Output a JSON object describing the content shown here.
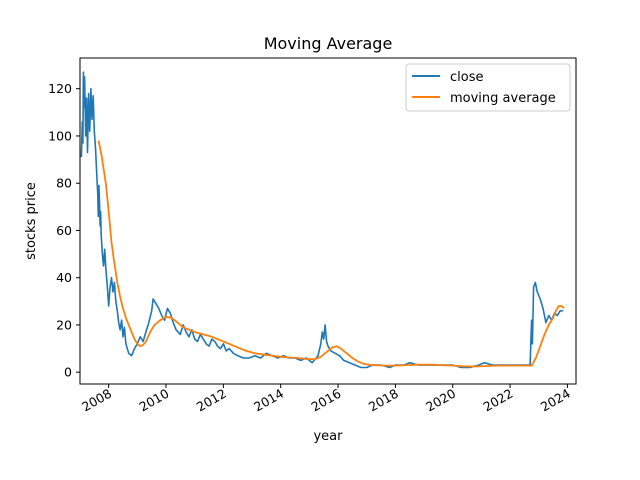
{
  "chart_data": {
    "type": "line",
    "title": "Moving Average",
    "xlabel": "year",
    "ylabel": "stocks price",
    "xlim": [
      2007.0,
      2024.3
    ],
    "ylim": [
      -5,
      133
    ],
    "x_ticks": [
      2008,
      2010,
      2012,
      2014,
      2016,
      2018,
      2020,
      2022,
      2024
    ],
    "x_tick_labels": [
      "2008",
      "2010",
      "2012",
      "2014",
      "2016",
      "2018",
      "2020",
      "2022",
      "2024"
    ],
    "y_ticks": [
      0,
      20,
      40,
      60,
      80,
      100,
      120
    ],
    "y_tick_labels": [
      "0",
      "20",
      "40",
      "60",
      "80",
      "100",
      "120"
    ],
    "grid": false,
    "legend_position": "top-right",
    "series": [
      {
        "name": "close",
        "color": "#1f77b4",
        "points": [
          [
            2007.05,
            91
          ],
          [
            2007.08,
            106
          ],
          [
            2007.1,
            97
          ],
          [
            2007.12,
            127
          ],
          [
            2007.14,
            112
          ],
          [
            2007.16,
            125
          ],
          [
            2007.2,
            100
          ],
          [
            2007.23,
            116
          ],
          [
            2007.26,
            93
          ],
          [
            2007.3,
            118
          ],
          [
            2007.34,
            102
          ],
          [
            2007.38,
            120
          ],
          [
            2007.42,
            107
          ],
          [
            2007.46,
            117
          ],
          [
            2007.5,
            102
          ],
          [
            2007.54,
            95
          ],
          [
            2007.58,
            85
          ],
          [
            2007.62,
            75
          ],
          [
            2007.64,
            66
          ],
          [
            2007.66,
            79
          ],
          [
            2007.68,
            72
          ],
          [
            2007.7,
            62
          ],
          [
            2007.72,
            68
          ],
          [
            2007.74,
            58
          ],
          [
            2007.78,
            50
          ],
          [
            2007.82,
            45
          ],
          [
            2007.86,
            52
          ],
          [
            2007.9,
            44
          ],
          [
            2007.95,
            37
          ],
          [
            2008.0,
            28
          ],
          [
            2008.05,
            36
          ],
          [
            2008.1,
            40
          ],
          [
            2008.15,
            34
          ],
          [
            2008.2,
            38
          ],
          [
            2008.25,
            30
          ],
          [
            2008.3,
            26
          ],
          [
            2008.35,
            21
          ],
          [
            2008.4,
            18
          ],
          [
            2008.45,
            22
          ],
          [
            2008.5,
            15
          ],
          [
            2008.55,
            19
          ],
          [
            2008.6,
            12
          ],
          [
            2008.7,
            8
          ],
          [
            2008.8,
            7
          ],
          [
            2008.9,
            10
          ],
          [
            2009.0,
            12
          ],
          [
            2009.1,
            15
          ],
          [
            2009.2,
            13
          ],
          [
            2009.3,
            17
          ],
          [
            2009.4,
            21
          ],
          [
            2009.5,
            26
          ],
          [
            2009.55,
            31
          ],
          [
            2009.65,
            29
          ],
          [
            2009.75,
            27
          ],
          [
            2009.85,
            24
          ],
          [
            2009.95,
            22
          ],
          [
            2010.05,
            27
          ],
          [
            2010.15,
            25
          ],
          [
            2010.25,
            21
          ],
          [
            2010.35,
            18
          ],
          [
            2010.5,
            16
          ],
          [
            2010.6,
            20
          ],
          [
            2010.7,
            17
          ],
          [
            2010.8,
            15
          ],
          [
            2010.9,
            18
          ],
          [
            2011.0,
            14
          ],
          [
            2011.1,
            13
          ],
          [
            2011.2,
            16
          ],
          [
            2011.3,
            14
          ],
          [
            2011.4,
            12
          ],
          [
            2011.5,
            11
          ],
          [
            2011.6,
            14
          ],
          [
            2011.7,
            13
          ],
          [
            2011.8,
            11
          ],
          [
            2011.9,
            10
          ],
          [
            2012.0,
            12
          ],
          [
            2012.1,
            9
          ],
          [
            2012.2,
            10
          ],
          [
            2012.35,
            8
          ],
          [
            2012.5,
            7
          ],
          [
            2012.7,
            6
          ],
          [
            2012.9,
            6
          ],
          [
            2013.1,
            7
          ],
          [
            2013.3,
            6
          ],
          [
            2013.5,
            8
          ],
          [
            2013.7,
            7
          ],
          [
            2013.9,
            6
          ],
          [
            2014.1,
            7
          ],
          [
            2014.3,
            6
          ],
          [
            2014.5,
            6
          ],
          [
            2014.7,
            5
          ],
          [
            2014.9,
            6
          ],
          [
            2015.1,
            4
          ],
          [
            2015.3,
            7
          ],
          [
            2015.4,
            12
          ],
          [
            2015.45,
            17
          ],
          [
            2015.5,
            14
          ],
          [
            2015.55,
            20
          ],
          [
            2015.6,
            13
          ],
          [
            2015.65,
            11
          ],
          [
            2015.75,
            9
          ],
          [
            2015.9,
            8
          ],
          [
            2016.05,
            7
          ],
          [
            2016.2,
            5
          ],
          [
            2016.4,
            4
          ],
          [
            2016.6,
            3
          ],
          [
            2016.8,
            2
          ],
          [
            2017.0,
            2
          ],
          [
            2017.2,
            3
          ],
          [
            2017.5,
            3
          ],
          [
            2017.8,
            2
          ],
          [
            2018.0,
            3
          ],
          [
            2018.3,
            3
          ],
          [
            2018.5,
            4
          ],
          [
            2018.8,
            3
          ],
          [
            2019.1,
            3
          ],
          [
            2019.4,
            3
          ],
          [
            2019.7,
            3
          ],
          [
            2020.0,
            3
          ],
          [
            2020.3,
            2
          ],
          [
            2020.6,
            2
          ],
          [
            2020.9,
            3
          ],
          [
            2021.1,
            4
          ],
          [
            2021.4,
            3
          ],
          [
            2021.7,
            3
          ],
          [
            2022.0,
            3
          ],
          [
            2022.3,
            3
          ],
          [
            2022.6,
            3
          ],
          [
            2022.7,
            3
          ],
          [
            2022.75,
            22
          ],
          [
            2022.78,
            12
          ],
          [
            2022.82,
            36
          ],
          [
            2022.88,
            38
          ],
          [
            2022.95,
            34
          ],
          [
            2023.05,
            31
          ],
          [
            2023.15,
            27
          ],
          [
            2023.25,
            21
          ],
          [
            2023.35,
            24
          ],
          [
            2023.45,
            22
          ],
          [
            2023.55,
            25
          ],
          [
            2023.65,
            24
          ],
          [
            2023.75,
            26
          ],
          [
            2023.85,
            26
          ]
        ]
      },
      {
        "name": "moving average",
        "color": "#ff7f0e",
        "points": [
          [
            2007.65,
            98
          ],
          [
            2007.75,
            92
          ],
          [
            2007.9,
            80
          ],
          [
            2008.0,
            68
          ],
          [
            2008.1,
            55
          ],
          [
            2008.2,
            46
          ],
          [
            2008.3,
            38
          ],
          [
            2008.4,
            32
          ],
          [
            2008.5,
            27
          ],
          [
            2008.6,
            23
          ],
          [
            2008.7,
            20
          ],
          [
            2008.8,
            17
          ],
          [
            2008.9,
            14
          ],
          [
            2009.0,
            12
          ],
          [
            2009.1,
            11
          ],
          [
            2009.2,
            11.5
          ],
          [
            2009.3,
            13
          ],
          [
            2009.45,
            17
          ],
          [
            2009.6,
            20
          ],
          [
            2009.8,
            22
          ],
          [
            2010.0,
            23.5
          ],
          [
            2010.2,
            23
          ],
          [
            2010.4,
            21
          ],
          [
            2010.6,
            19
          ],
          [
            2010.8,
            18
          ],
          [
            2011.0,
            17
          ],
          [
            2011.3,
            16
          ],
          [
            2011.6,
            15
          ],
          [
            2011.9,
            13.5
          ],
          [
            2012.2,
            12
          ],
          [
            2012.5,
            10.5
          ],
          [
            2012.8,
            9
          ],
          [
            2013.1,
            8
          ],
          [
            2013.4,
            7.5
          ],
          [
            2013.7,
            7
          ],
          [
            2014.0,
            6.5
          ],
          [
            2014.3,
            6.2
          ],
          [
            2014.6,
            6
          ],
          [
            2014.9,
            5.6
          ],
          [
            2015.2,
            5.5
          ],
          [
            2015.4,
            6.5
          ],
          [
            2015.6,
            8.5
          ],
          [
            2015.8,
            10.5
          ],
          [
            2015.95,
            11
          ],
          [
            2016.1,
            10
          ],
          [
            2016.3,
            8
          ],
          [
            2016.5,
            6
          ],
          [
            2016.7,
            4.5
          ],
          [
            2016.9,
            3.5
          ],
          [
            2017.2,
            3
          ],
          [
            2017.6,
            2.8
          ],
          [
            2018.0,
            2.8
          ],
          [
            2018.4,
            3
          ],
          [
            2018.8,
            3.2
          ],
          [
            2019.2,
            3.2
          ],
          [
            2019.6,
            3
          ],
          [
            2020.0,
            2.8
          ],
          [
            2020.4,
            2.5
          ],
          [
            2020.8,
            2.4
          ],
          [
            2021.2,
            2.6
          ],
          [
            2021.6,
            2.8
          ],
          [
            2022.0,
            2.8
          ],
          [
            2022.4,
            2.8
          ],
          [
            2022.75,
            2.8
          ],
          [
            2022.9,
            6
          ],
          [
            2023.05,
            11
          ],
          [
            2023.2,
            16
          ],
          [
            2023.35,
            20
          ],
          [
            2023.5,
            23
          ],
          [
            2023.6,
            26
          ],
          [
            2023.7,
            28
          ],
          [
            2023.8,
            28
          ],
          [
            2023.88,
            27
          ]
        ]
      }
    ]
  }
}
